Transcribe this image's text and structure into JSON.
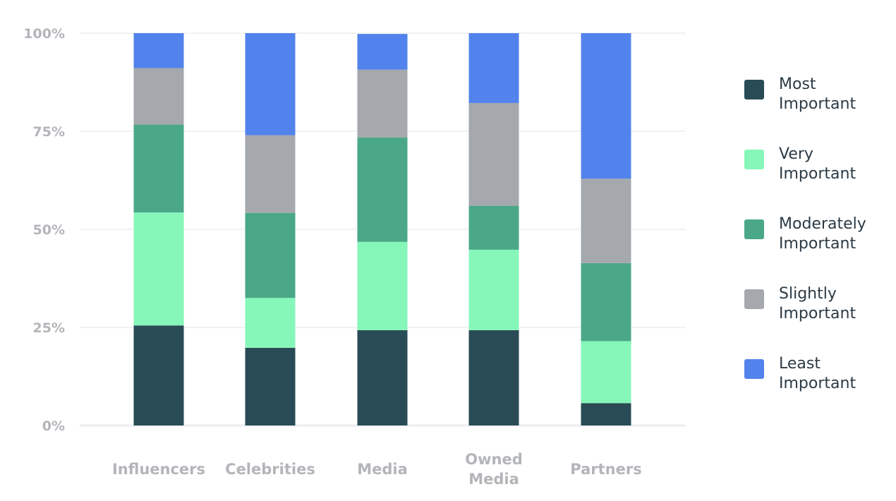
{
  "chart_data": {
    "type": "bar",
    "stacked": true,
    "categories": [
      "Influencers",
      "Celebrities",
      "Media",
      "Owned Media",
      "Partners"
    ],
    "category_lines": [
      [
        "Influencers"
      ],
      [
        "Celebrities"
      ],
      [
        "Media"
      ],
      [
        "Owned",
        "Media"
      ],
      [
        "Partners"
      ]
    ],
    "series": [
      {
        "name": "Most Important",
        "lines": [
          "Most",
          "Important"
        ],
        "color": "#294b55",
        "values": [
          25.5,
          19.8,
          24.3,
          24.3,
          5.7
        ]
      },
      {
        "name": "Very Important",
        "lines": [
          "Very",
          "Important"
        ],
        "color": "#86f7b9",
        "values": [
          28.8,
          12.7,
          22.5,
          20.5,
          15.8
        ]
      },
      {
        "name": "Moderately Important",
        "lines": [
          "Moderately",
          "Important"
        ],
        "color": "#4aa888",
        "values": [
          22.4,
          21.7,
          26.6,
          11.2,
          19.9
        ]
      },
      {
        "name": "Slightly Important",
        "lines": [
          "Slightly",
          "Important"
        ],
        "color": "#a5a8ad",
        "values": [
          14.4,
          19.8,
          17.3,
          26.2,
          21.5
        ]
      },
      {
        "name": "Least Important",
        "lines": [
          "Least",
          "Important"
        ],
        "color": "#5283ec",
        "values": [
          8.9,
          26.0,
          9.1,
          17.8,
          37.1
        ]
      }
    ],
    "yticks": [
      "0%",
      "25%",
      "50%",
      "75%",
      "100%"
    ],
    "ylim": [
      0,
      100
    ],
    "grid": true,
    "legend_position": "right"
  }
}
